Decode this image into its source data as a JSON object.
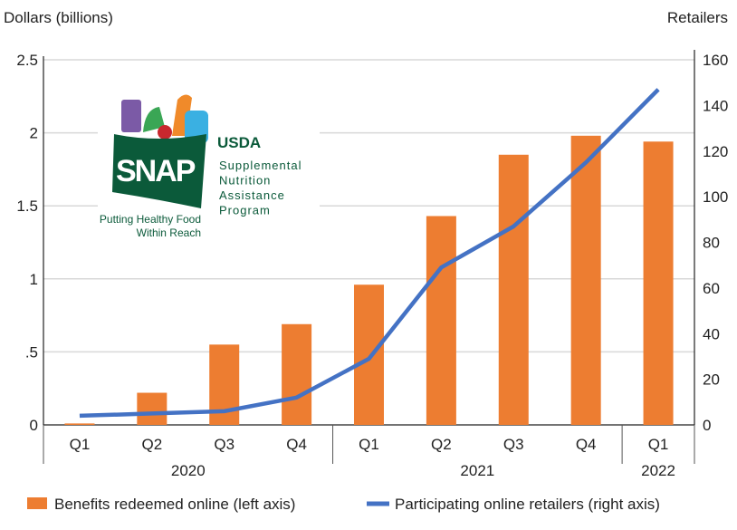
{
  "chart_data": {
    "type": "bar+line",
    "ylabel_left": "Dollars (billions)",
    "ylabel_right": "Retailers",
    "ylim_left": [
      0,
      2.5
    ],
    "ylim_right": [
      0,
      160
    ],
    "yticks_left": [
      "0",
      ".5",
      "1",
      "1.5",
      "2",
      "2.5"
    ],
    "yticks_left_values": [
      0,
      0.5,
      1,
      1.5,
      2,
      2.5
    ],
    "yticks_right": [
      0,
      20,
      40,
      60,
      80,
      100,
      120,
      140,
      160
    ],
    "categories": [
      "Q1",
      "Q2",
      "Q3",
      "Q4",
      "Q1",
      "Q2",
      "Q3",
      "Q4",
      "Q1"
    ],
    "years": [
      {
        "label": "2020",
        "span": 4
      },
      {
        "label": "2021",
        "span": 4
      },
      {
        "label": "2022",
        "span": 1
      }
    ],
    "grid": true,
    "legend_placement": "bottom",
    "series": [
      {
        "name": "Benefits redeemed online (left axis)",
        "type": "bar",
        "axis": "left",
        "color": "#ED7D31",
        "values": [
          0.01,
          0.22,
          0.55,
          0.69,
          0.96,
          1.43,
          1.85,
          1.98,
          1.94
        ]
      },
      {
        "name": "Participating online retailers (right axis)",
        "type": "line",
        "axis": "right",
        "color": "#4472C4",
        "values": [
          4,
          5,
          6,
          12,
          29,
          69,
          87,
          115,
          147
        ]
      }
    ]
  },
  "logo": {
    "brand": "SNAP",
    "org": "USDA",
    "name_lines": [
      "Supplemental",
      "Nutrition",
      "Assistance",
      "Program"
    ],
    "tagline_lines": [
      "Putting Healthy Food",
      "Within Reach"
    ]
  }
}
